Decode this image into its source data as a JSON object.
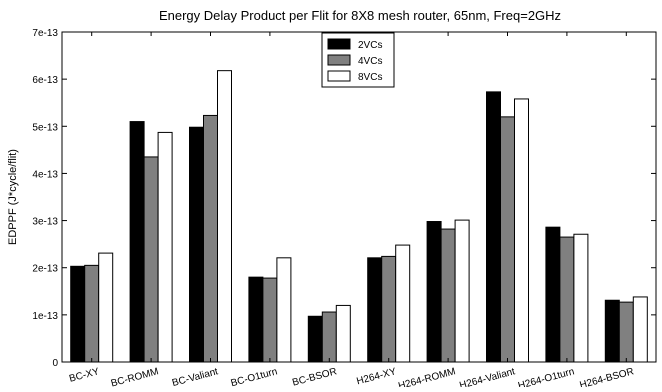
{
  "chart_data": {
    "type": "bar",
    "title": "Energy Delay Product per Flit for 8X8 mesh router, 65nm, Freq=2GHz",
    "ylabel": "EDPPF (J*cycle/flit)",
    "xlabel": "",
    "ylim": [
      0,
      7e-13
    ],
    "yticks": [
      {
        "value": 0,
        "label": "0"
      },
      {
        "value": 1e-13,
        "label": "1e-13"
      },
      {
        "value": 2e-13,
        "label": "2e-13"
      },
      {
        "value": 3e-13,
        "label": "3e-13"
      },
      {
        "value": 4e-13,
        "label": "4e-13"
      },
      {
        "value": 5e-13,
        "label": "5e-13"
      },
      {
        "value": 6e-13,
        "label": "6e-13"
      },
      {
        "value": 7e-13,
        "label": "7e-13"
      }
    ],
    "categories": [
      "BC-XY",
      "BC-ROMM",
      "BC-Valiant",
      "BC-O1turn",
      "BC-BSOR",
      "H264-XY",
      "H264-ROMM",
      "H264-Valiant",
      "H264-O1turn",
      "H264-BSOR"
    ],
    "series": [
      {
        "name": "2VCs",
        "color": "#000000",
        "values": [
          2.03e-13,
          5.1e-13,
          4.98e-13,
          1.8e-13,
          9.7e-14,
          2.21e-13,
          2.98e-13,
          5.73e-13,
          2.86e-13,
          1.31e-13
        ]
      },
      {
        "name": "4VCs",
        "color": "#808080",
        "values": [
          2.05e-13,
          4.35e-13,
          5.23e-13,
          1.78e-13,
          1.06e-13,
          2.24e-13,
          2.82e-13,
          5.2e-13,
          2.65e-13,
          1.27e-13
        ]
      },
      {
        "name": "8VCs",
        "color": "#ffffff",
        "values": [
          2.31e-13,
          4.87e-13,
          6.18e-13,
          2.21e-13,
          1.2e-13,
          2.48e-13,
          3.01e-13,
          5.58e-13,
          2.71e-13,
          1.38e-13
        ]
      }
    ],
    "grid": false,
    "legend_position": "top-center"
  }
}
